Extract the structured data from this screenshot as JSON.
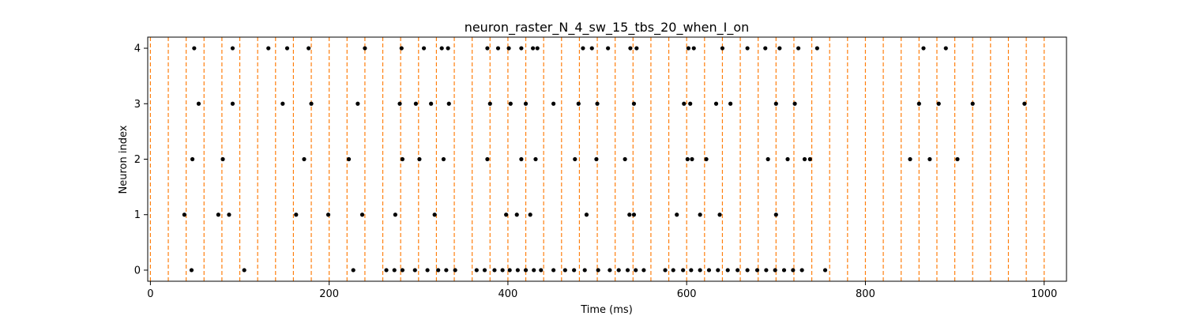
{
  "chart_data": {
    "type": "scatter",
    "title": "neuron_raster_N_4_sw_15_tbs_20_when_I_on",
    "xlabel": "Time (ms)",
    "ylabel": "Neuron index",
    "xlim": [
      -3,
      1025
    ],
    "ylim": [
      -0.2,
      4.2
    ],
    "xticks": [
      0,
      200,
      400,
      600,
      800,
      1000
    ],
    "yticks": [
      0,
      1,
      2,
      3,
      4
    ],
    "grid": false,
    "spike_color": "#000000",
    "stim_line_color": "#ff7f0e",
    "stim_lines_ms": [
      0,
      20,
      40,
      60,
      80,
      100,
      120,
      140,
      160,
      180,
      200,
      220,
      240,
      260,
      280,
      300,
      320,
      340,
      360,
      380,
      400,
      420,
      440,
      460,
      480,
      500,
      520,
      540,
      560,
      580,
      600,
      620,
      640,
      660,
      680,
      700,
      720,
      740,
      760,
      780,
      800,
      820,
      840,
      860,
      880,
      900,
      920,
      940,
      960,
      980,
      1000
    ],
    "series": [
      {
        "neuron": 0,
        "spikes_ms": [
          46,
          105,
          227,
          264,
          273,
          282,
          296,
          310,
          322,
          331,
          341,
          365,
          374,
          385,
          394,
          402,
          411,
          420,
          429,
          437,
          451,
          464,
          474,
          486,
          501,
          514,
          524,
          534,
          543,
          552,
          576,
          585,
          596,
          605,
          615,
          625,
          635,
          646,
          657,
          668,
          679,
          689,
          699,
          709,
          719,
          729,
          755
        ]
      },
      {
        "neuron": 1,
        "spikes_ms": [
          38,
          76,
          88,
          163,
          199,
          237,
          274,
          318,
          398,
          410,
          425,
          488,
          536,
          541,
          589,
          615,
          637,
          700
        ]
      },
      {
        "neuron": 2,
        "spikes_ms": [
          47,
          81,
          172,
          222,
          282,
          301,
          328,
          377,
          415,
          431,
          475,
          499,
          531,
          601,
          606,
          622,
          691,
          713,
          732,
          738,
          850,
          872,
          903
        ]
      },
      {
        "neuron": 3,
        "spikes_ms": [
          54,
          92,
          148,
          180,
          232,
          279,
          297,
          314,
          334,
          380,
          403,
          420,
          451,
          479,
          500,
          541,
          597,
          604,
          633,
          649,
          700,
          721,
          860,
          882,
          920,
          978
        ]
      },
      {
        "neuron": 4,
        "spikes_ms": [
          49,
          92,
          132,
          153,
          177,
          240,
          281,
          306,
          326,
          333,
          377,
          389,
          401,
          415,
          428,
          433,
          484,
          494,
          512,
          537,
          544,
          602,
          608,
          640,
          668,
          688,
          704,
          725,
          746,
          865,
          890
        ]
      }
    ]
  }
}
